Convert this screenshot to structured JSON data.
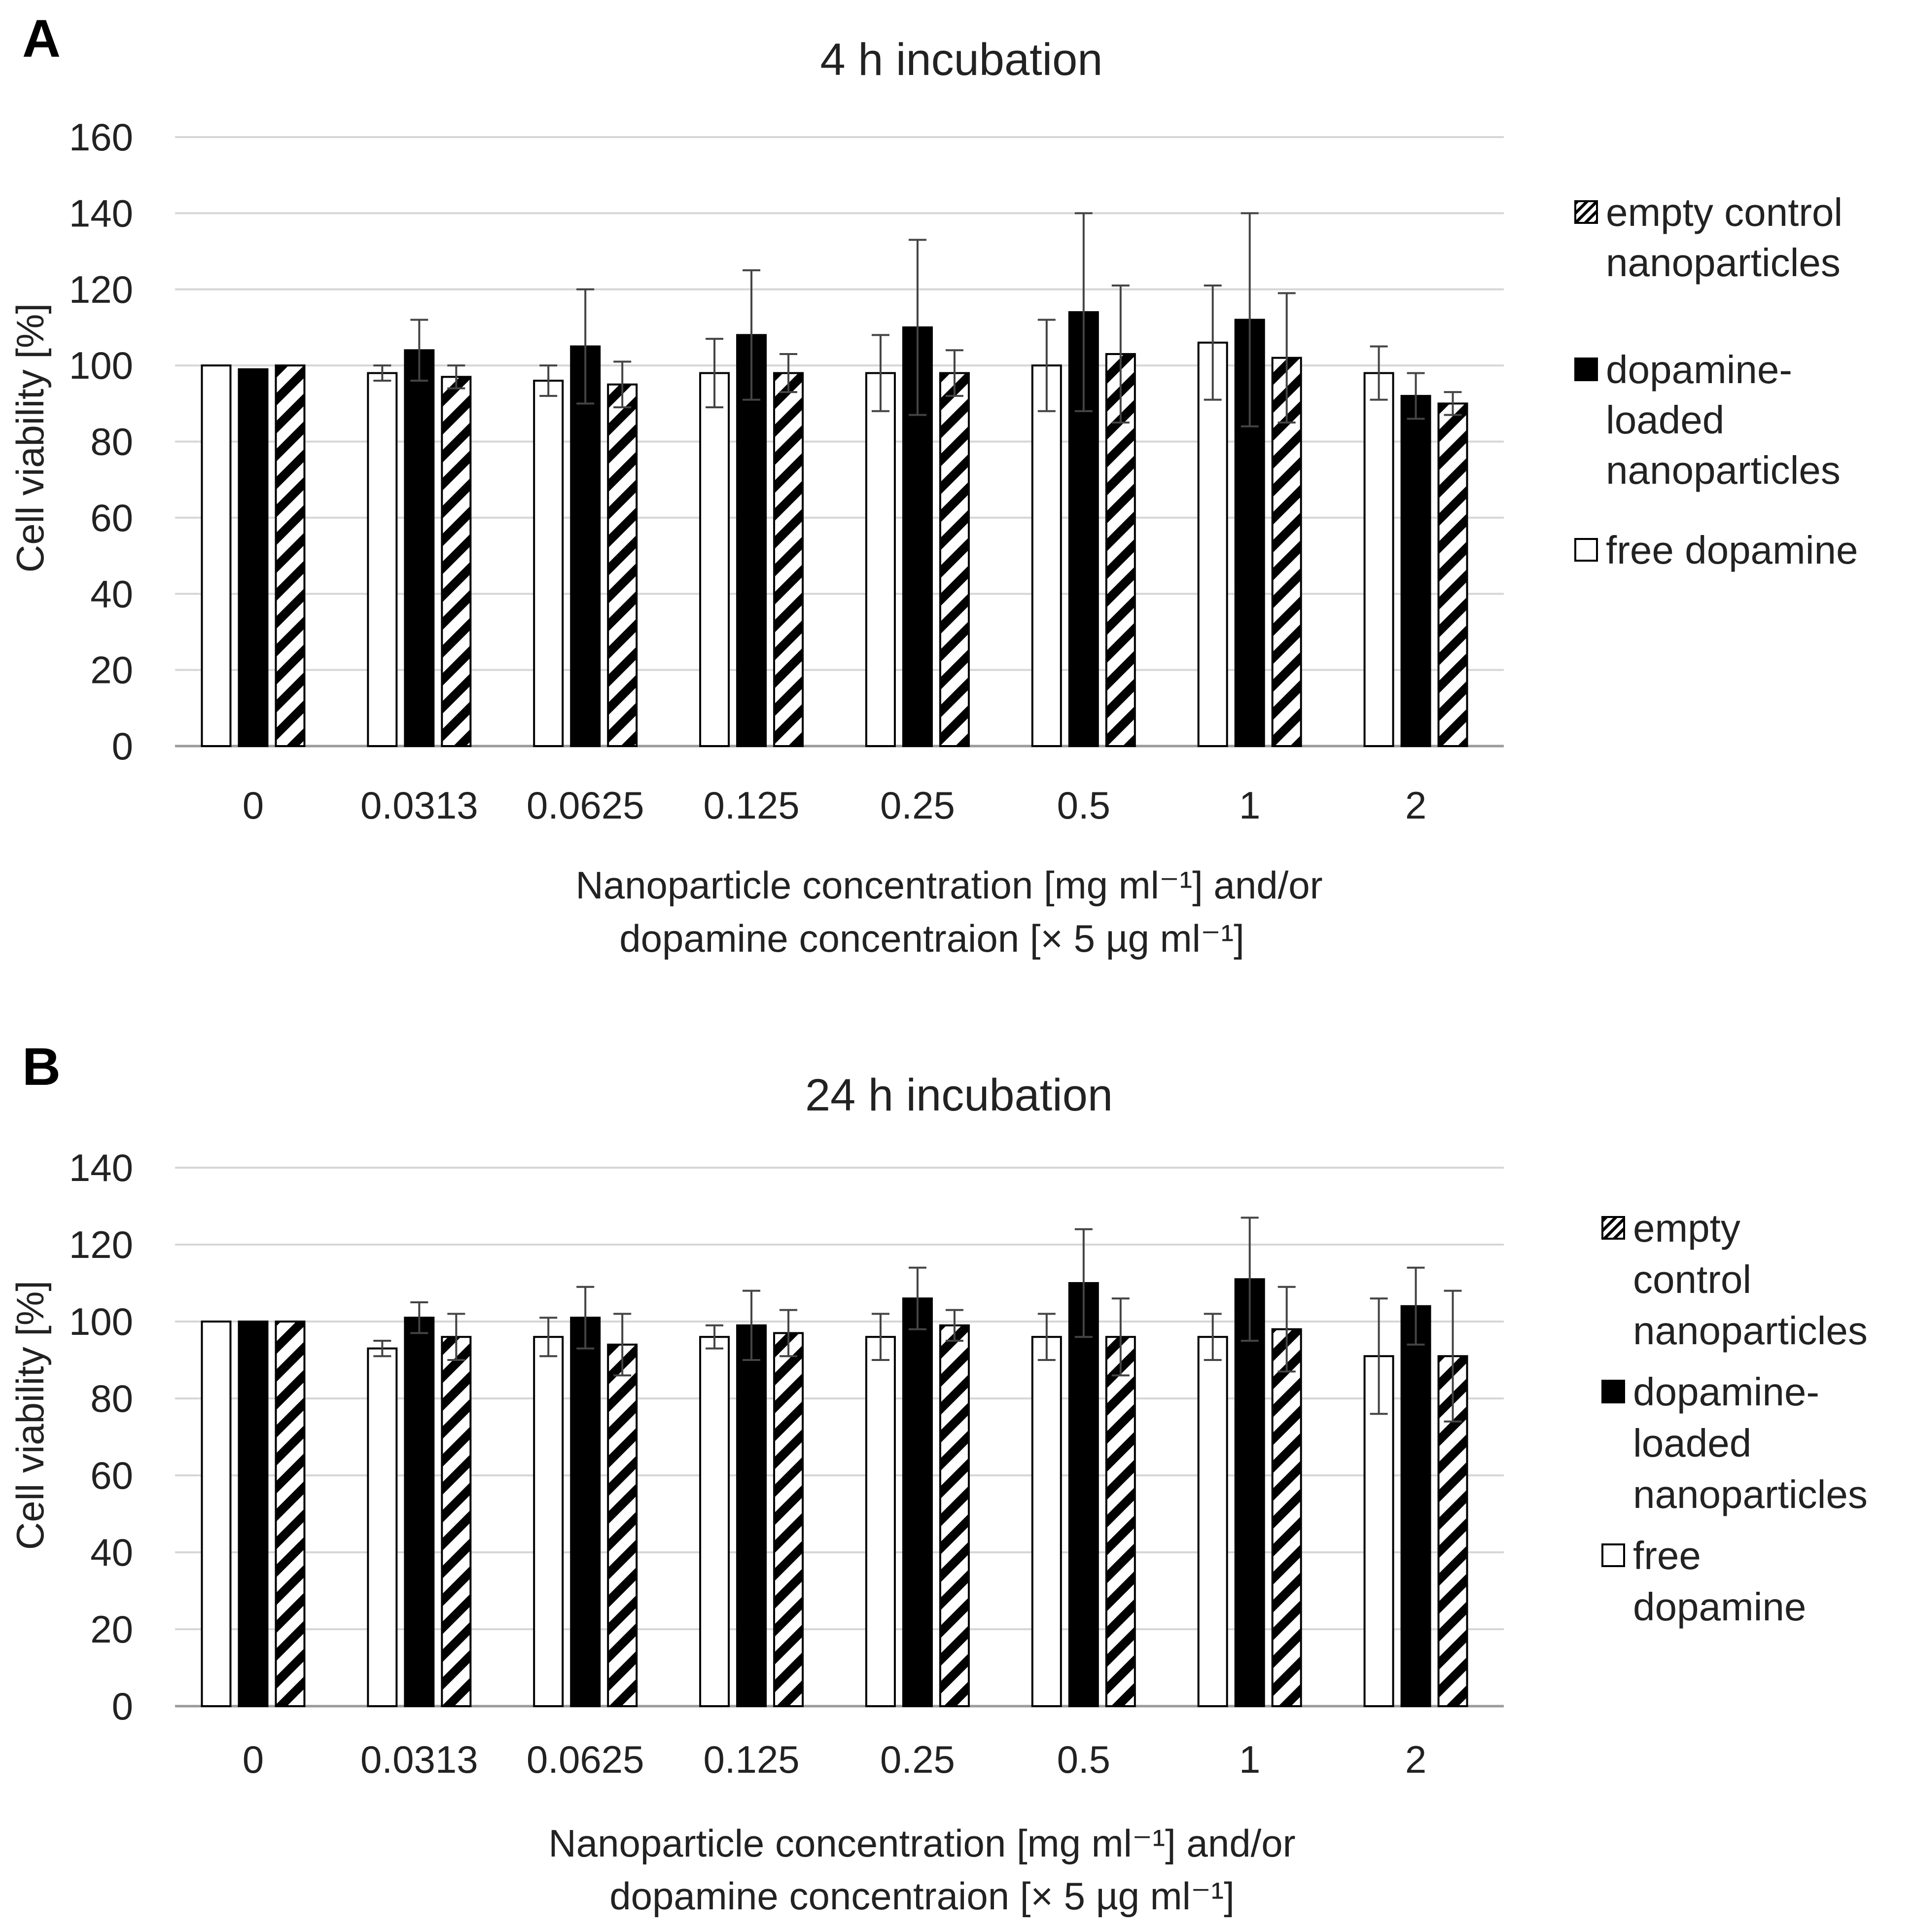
{
  "chart_data": [
    {
      "panel_label": "A",
      "type": "bar",
      "title": "4 h incubation",
      "ylabel": "Cell viability [%]",
      "xlabel_line1": "Nanoparticle concentration [mg ml⁻¹]  and/or",
      "xlabel_line2": "dopamine concentraion [× 5 µg ml⁻¹]",
      "ylim": [
        0,
        160
      ],
      "yticks": [
        "0",
        "20",
        "40",
        "60",
        "80",
        "100",
        "120",
        "140",
        "160"
      ],
      "grid": true,
      "legend_position": "right",
      "categories": [
        "0",
        "0.0313",
        "0.0625",
        "0.125",
        "0.25",
        "0.5",
        "1",
        "2"
      ],
      "series": [
        {
          "name": "free dopamine",
          "pattern": "white",
          "values": [
            100,
            98,
            96,
            98,
            98,
            100,
            106,
            98
          ],
          "errors": [
            0,
            2,
            4,
            9,
            10,
            12,
            15,
            7
          ]
        },
        {
          "name": "dopamine-loaded nanoparticles",
          "pattern": "black",
          "values": [
            99,
            104,
            105,
            108,
            110,
            114,
            112,
            92
          ],
          "errors": [
            0,
            8,
            15,
            17,
            23,
            26,
            28,
            6
          ]
        },
        {
          "name": "empty control nanoparticles",
          "pattern": "hatched",
          "values": [
            100,
            97,
            95,
            98,
            98,
            103,
            102,
            90
          ],
          "errors": [
            0,
            3,
            6,
            5,
            6,
            18,
            17,
            3
          ]
        }
      ],
      "legend": [
        {
          "pattern": "hatched",
          "lines": [
            "empty control",
            "nanoparticles"
          ]
        },
        {
          "pattern": "black",
          "lines": [
            "dopamine-",
            "loaded",
            "nanoparticles"
          ]
        },
        {
          "pattern": "white",
          "lines": [
            "free dopamine"
          ]
        }
      ]
    },
    {
      "panel_label": "B",
      "type": "bar",
      "title": "24 h incubation",
      "ylabel": "Cell viability [%]",
      "xlabel_line1": "Nanoparticle concentration [mg ml⁻¹]  and/or",
      "xlabel_line2": "dopamine concentraion [× 5 µg ml⁻¹]",
      "ylim": [
        0,
        140
      ],
      "yticks": [
        "0",
        "20",
        "40",
        "60",
        "80",
        "100",
        "120",
        "140"
      ],
      "grid": true,
      "legend_position": "right",
      "categories": [
        "0",
        "0.0313",
        "0.0625",
        "0.125",
        "0.25",
        "0.5",
        "1",
        "2"
      ],
      "series": [
        {
          "name": "free dopamine",
          "pattern": "white",
          "values": [
            100,
            93,
            96,
            96,
            96,
            96,
            96,
            91
          ],
          "errors": [
            0,
            2,
            5,
            3,
            6,
            6,
            6,
            15
          ]
        },
        {
          "name": "dopamine-loaded nanoparticles",
          "pattern": "black",
          "values": [
            100,
            101,
            101,
            99,
            106,
            110,
            111,
            104
          ],
          "errors": [
            0,
            4,
            8,
            9,
            8,
            14,
            16,
            10
          ]
        },
        {
          "name": "empty control nanoparticles",
          "pattern": "hatched",
          "values": [
            100,
            96,
            94,
            97,
            99,
            96,
            98,
            91
          ],
          "errors": [
            0,
            6,
            8,
            6,
            4,
            10,
            11,
            17
          ]
        }
      ],
      "legend": [
        {
          "pattern": "hatched",
          "lines": [
            "empty",
            "control",
            "nanoparticles"
          ]
        },
        {
          "pattern": "black",
          "lines": [
            "dopamine-",
            "loaded",
            "nanoparticles"
          ]
        },
        {
          "pattern": "white",
          "lines": [
            "free",
            "dopamine"
          ]
        }
      ]
    }
  ]
}
